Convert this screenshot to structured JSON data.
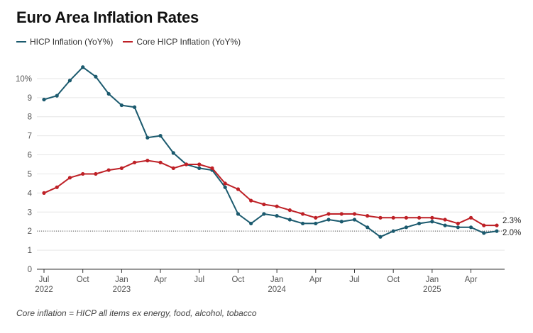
{
  "title": "Euro Area Inflation Rates",
  "note": "Core inflation = HICP all items ex energy, food, alcohol, tobacco",
  "colors": {
    "hicp": "#1b5a6e",
    "core": "#be2026",
    "grid": "#e6e6e6",
    "axis": "#333333",
    "ref": "#555555"
  },
  "chart_data": {
    "type": "line",
    "title": "Euro Area Inflation Rates",
    "xlabel": "",
    "ylabel": "",
    "ylim": [
      0,
      11
    ],
    "yticks": [
      0,
      1,
      2,
      3,
      4,
      5,
      6,
      7,
      8,
      9,
      10
    ],
    "ytick_labels": [
      "0",
      "1",
      "2",
      "3",
      "4",
      "5",
      "6",
      "7",
      "8",
      "9",
      "10%"
    ],
    "reference_line": 2.0,
    "x": [
      "2022-07",
      "2022-08",
      "2022-09",
      "2022-10",
      "2022-11",
      "2022-12",
      "2023-01",
      "2023-02",
      "2023-03",
      "2023-04",
      "2023-05",
      "2023-06",
      "2023-07",
      "2023-08",
      "2023-09",
      "2023-10",
      "2023-11",
      "2023-12",
      "2024-01",
      "2024-02",
      "2024-03",
      "2024-04",
      "2024-05",
      "2024-06",
      "2024-07",
      "2024-08",
      "2024-09",
      "2024-10",
      "2024-11",
      "2024-12",
      "2025-01",
      "2025-02",
      "2025-03",
      "2025-04",
      "2025-05",
      "2025-06"
    ],
    "xticks": [
      {
        "month": "Jul",
        "year": "2022",
        "index": 0
      },
      {
        "month": "Oct",
        "year": "",
        "index": 3
      },
      {
        "month": "Jan",
        "year": "2023",
        "index": 6
      },
      {
        "month": "Apr",
        "year": "",
        "index": 9
      },
      {
        "month": "Jul",
        "year": "",
        "index": 12
      },
      {
        "month": "Oct",
        "year": "",
        "index": 15
      },
      {
        "month": "Jan",
        "year": "2024",
        "index": 18
      },
      {
        "month": "Apr",
        "year": "",
        "index": 21
      },
      {
        "month": "Jul",
        "year": "",
        "index": 24
      },
      {
        "month": "Oct",
        "year": "",
        "index": 27
      },
      {
        "month": "Jan",
        "year": "2025",
        "index": 30
      },
      {
        "month": "Apr",
        "year": "",
        "index": 33
      }
    ],
    "series": [
      {
        "name": "HICP Inflation (YoY%)",
        "key": "hicp",
        "end_label": "2.0%",
        "values": [
          8.9,
          9.1,
          9.9,
          10.6,
          10.1,
          9.2,
          8.6,
          8.5,
          6.9,
          7.0,
          6.1,
          5.5,
          5.3,
          5.2,
          4.3,
          2.9,
          2.4,
          2.9,
          2.8,
          2.6,
          2.4,
          2.4,
          2.6,
          2.5,
          2.6,
          2.2,
          1.7,
          2.0,
          2.2,
          2.4,
          2.5,
          2.3,
          2.2,
          2.2,
          1.9,
          2.0
        ]
      },
      {
        "name": "Core HICP Inflation (YoY%)",
        "key": "core",
        "end_label": "2.3%",
        "values": [
          4.0,
          4.3,
          4.8,
          5.0,
          5.0,
          5.2,
          5.3,
          5.6,
          5.7,
          5.6,
          5.3,
          5.5,
          5.5,
          5.3,
          4.5,
          4.2,
          3.6,
          3.4,
          3.3,
          3.1,
          2.9,
          2.7,
          2.9,
          2.9,
          2.9,
          2.8,
          2.7,
          2.7,
          2.7,
          2.7,
          2.7,
          2.6,
          2.4,
          2.7,
          2.3,
          2.3
        ]
      }
    ]
  }
}
